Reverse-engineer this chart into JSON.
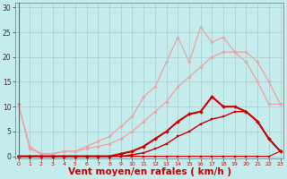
{
  "background_color": "#c5eced",
  "grid_color": "#aacccc",
  "xlabel": "Vent moyen/en rafales ( km/h )",
  "xlabel_color": "#cc0000",
  "xlabel_fontsize": 7.5,
  "xticks": [
    0,
    1,
    2,
    3,
    4,
    5,
    6,
    7,
    8,
    9,
    10,
    11,
    12,
    13,
    14,
    15,
    16,
    17,
    18,
    19,
    20,
    21,
    22,
    23
  ],
  "yticks": [
    0,
    5,
    10,
    15,
    20,
    25,
    30
  ],
  "ylim": [
    -0.5,
    31
  ],
  "xlim": [
    -0.3,
    23.3
  ],
  "series": [
    {
      "x": [
        0,
        1,
        2,
        3,
        4,
        5,
        6,
        7,
        8,
        9,
        10,
        11,
        12,
        13,
        14,
        15,
        16,
        17,
        18,
        19,
        20,
        21,
        22,
        23
      ],
      "y": [
        0,
        0,
        0,
        0,
        0,
        0,
        0,
        0,
        0,
        0,
        0,
        0,
        0,
        0,
        0,
        0,
        0,
        0,
        0,
        0,
        0,
        0,
        0,
        1
      ],
      "color": "#cc0000",
      "linewidth": 0.8,
      "marker": "s",
      "markersize": 1.8,
      "zorder": 6
    },
    {
      "x": [
        0,
        1,
        2,
        3,
        4,
        5,
        6,
        7,
        8,
        9,
        10,
        11,
        12,
        13,
        14,
        15,
        16,
        17,
        18,
        19,
        20,
        21,
        22,
        23
      ],
      "y": [
        0,
        0,
        0,
        0,
        0,
        0,
        0,
        0,
        0,
        0,
        0.3,
        0.7,
        1.5,
        2.5,
        4,
        5,
        6.5,
        7.5,
        8,
        9,
        9,
        7,
        3.5,
        1
      ],
      "color": "#cc0000",
      "linewidth": 1.0,
      "marker": "s",
      "markersize": 1.8,
      "zorder": 5
    },
    {
      "x": [
        0,
        1,
        2,
        3,
        4,
        5,
        6,
        7,
        8,
        9,
        10,
        11,
        12,
        13,
        14,
        15,
        16,
        17,
        18,
        19,
        20,
        21,
        22,
        23
      ],
      "y": [
        0,
        0,
        0,
        0,
        0,
        0,
        0,
        0,
        0,
        0.5,
        1,
        2,
        3.5,
        5,
        7,
        8.5,
        9,
        12,
        10,
        10,
        9,
        7,
        3.5,
        1
      ],
      "color": "#cc0000",
      "linewidth": 1.5,
      "marker": "D",
      "markersize": 2.0,
      "zorder": 4
    },
    {
      "x": [
        0,
        1,
        2,
        3,
        4,
        5,
        6,
        7,
        8,
        9,
        10,
        11,
        12,
        13,
        14,
        15,
        16,
        17,
        18,
        19,
        20,
        21,
        22,
        23
      ],
      "y": [
        10.5,
        1.5,
        0.5,
        0.5,
        1,
        1,
        1.5,
        2,
        2.5,
        3.5,
        5,
        7,
        9,
        11,
        14,
        16,
        18,
        20,
        21,
        21,
        21,
        19,
        15,
        10.5
      ],
      "color": "#f0a0a0",
      "linewidth": 0.9,
      "marker": "D",
      "markersize": 1.8,
      "zorder": 2
    },
    {
      "x": [
        0,
        1,
        2,
        3,
        4,
        5,
        6,
        7,
        8,
        9,
        10,
        11,
        12,
        13,
        14,
        15,
        16,
        17,
        18,
        19,
        20,
        21,
        22,
        23
      ],
      "y": [
        10.5,
        2,
        0.5,
        0.5,
        1,
        1,
        2,
        3,
        4,
        6,
        8,
        12,
        14,
        19,
        24,
        19,
        26,
        23,
        24,
        21,
        19,
        15,
        10.5,
        10.5
      ],
      "color": "#f0a0a0",
      "linewidth": 0.9,
      "marker": "D",
      "markersize": 1.8,
      "zorder": 1
    }
  ]
}
